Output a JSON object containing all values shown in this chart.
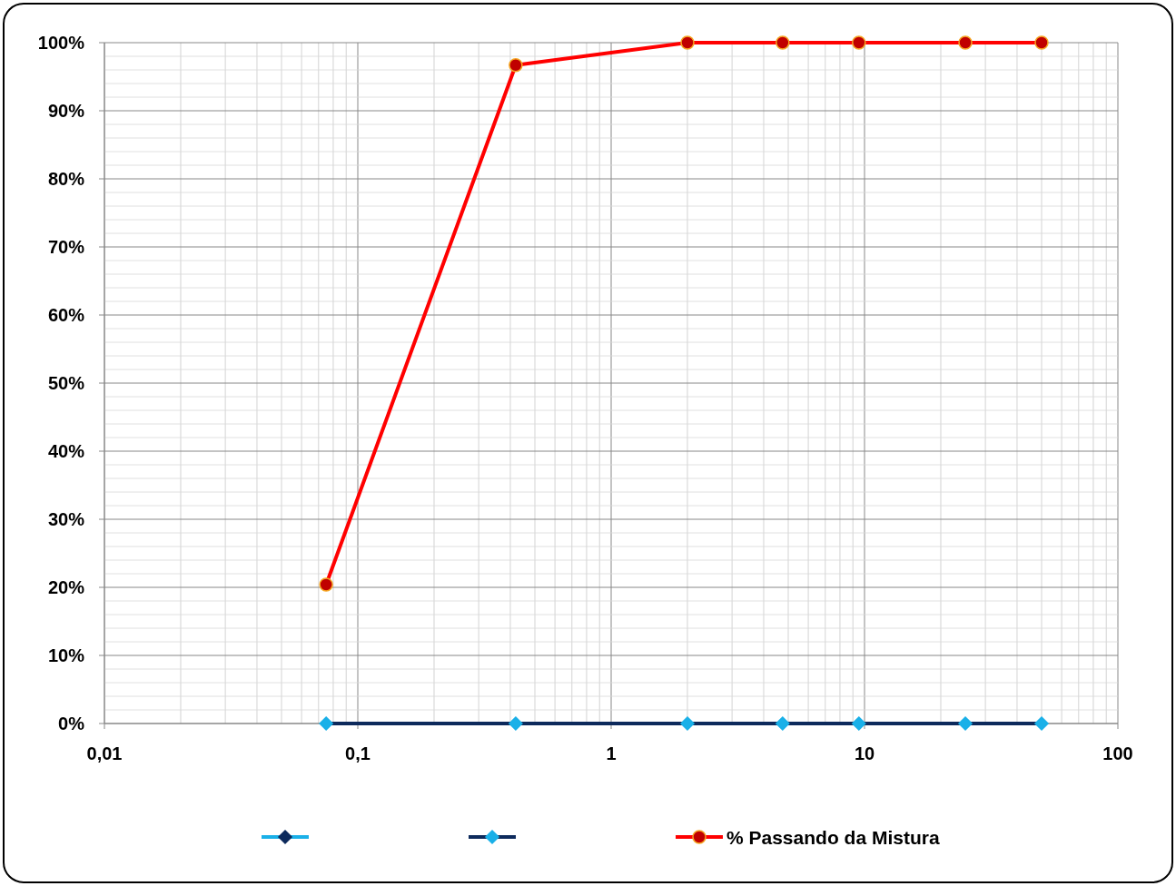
{
  "chart_data": {
    "type": "line",
    "log": "x",
    "grid": true,
    "legend": "bottom",
    "marker": "circle",
    "xlim": [
      0.01,
      100
    ],
    "xticks": [
      {
        "value": 0.01,
        "label": "0,01"
      },
      {
        "value": 0.1,
        "label": "0,1"
      },
      1,
      10,
      100
    ],
    "ylim": [
      0,
      100
    ],
    "yticks": [
      {
        "value": 0,
        "label": "0%"
      },
      {
        "value": 10,
        "label": "10%"
      },
      {
        "value": 20,
        "label": "20%"
      },
      {
        "value": 30,
        "label": "30%"
      },
      {
        "value": 40,
        "label": "40%"
      },
      {
        "value": 50,
        "label": "50%"
      },
      {
        "value": 60,
        "label": "60%"
      },
      {
        "value": 70,
        "label": "70%"
      },
      {
        "value": 80,
        "label": "80%"
      },
      {
        "value": 90,
        "label": "90%"
      },
      {
        "value": 100,
        "label": "100%"
      }
    ],
    "x": [
      0.075,
      0.42,
      2,
      4.75,
      9.5,
      25,
      50
    ],
    "series": [
      {
        "color": "#1ab0e8",
        "marker": "diamond",
        "values": [
          null,
          null,
          null,
          null,
          null,
          null,
          null
        ]
      },
      {
        "color": "#0d2a5c",
        "marker": "diamond",
        "values": [
          0,
          0,
          0,
          0,
          0,
          0,
          0
        ]
      },
      {
        "name": "% Passando da Mistura",
        "color": "#ff0000",
        "values": [
          20.4,
          96.7,
          100,
          100,
          100,
          100,
          100
        ]
      }
    ]
  }
}
